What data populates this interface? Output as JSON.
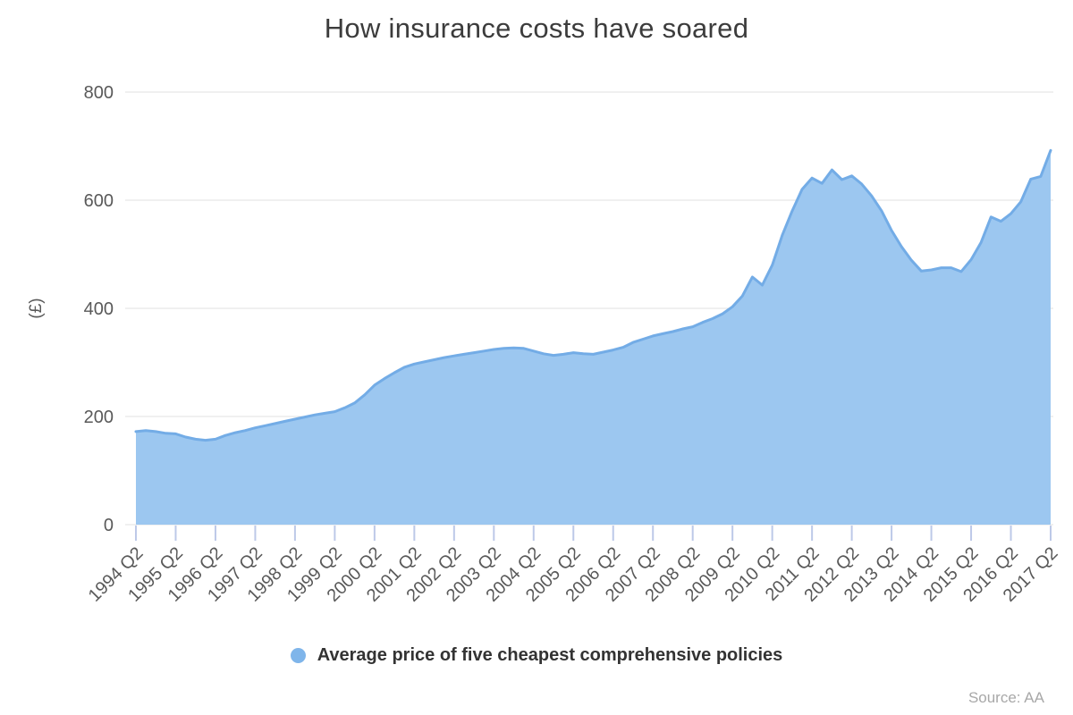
{
  "title": "How insurance costs have soared",
  "y_axis": {
    "label": "(£)",
    "ticks": [
      0,
      200,
      400,
      600,
      800
    ],
    "max": 800
  },
  "x_axis": {
    "tick_labels": [
      "1994 Q2",
      "1995 Q2",
      "1996 Q2",
      "1997 Q2",
      "1998 Q2",
      "1999 Q2",
      "2000 Q2",
      "2001 Q2",
      "2002 Q2",
      "2003 Q2",
      "2004 Q2",
      "2005 Q2",
      "2006 Q2",
      "2007 Q2",
      "2008 Q2",
      "2009 Q2",
      "2010 Q2",
      "2011 Q2",
      "2012 Q2",
      "2013 Q2",
      "2014 Q2",
      "2015 Q2",
      "2016 Q2",
      "2017 Q2"
    ]
  },
  "legend": {
    "label": "Average price of five cheapest comprehensive policies"
  },
  "source": "Source: AA",
  "colors": {
    "area_fill": "#9cc7f0",
    "line": "#73ace6",
    "legend_marker": "#7fb5ea",
    "grid": "#e0e0e0",
    "tick": "#bdc9e8",
    "axis_text": "#595959",
    "title_text": "#3c3c3c",
    "legend_text": "#333333",
    "source_text": "#a8a8a8"
  },
  "chart_data": {
    "type": "area",
    "title": "How insurance costs have soared",
    "xlabel": "",
    "ylabel": "(£)",
    "ylim": [
      0,
      800
    ],
    "grid": true,
    "legend_position": "bottom",
    "x_tick_labels_shown": "Q2 of each year, rotated 45 degrees",
    "series": [
      {
        "name": "Average price of five cheapest comprehensive policies",
        "x": [
          "1994 Q2",
          "1994 Q3",
          "1994 Q4",
          "1995 Q1",
          "1995 Q2",
          "1995 Q3",
          "1995 Q4",
          "1996 Q1",
          "1996 Q2",
          "1996 Q3",
          "1996 Q4",
          "1997 Q1",
          "1997 Q2",
          "1997 Q3",
          "1997 Q4",
          "1998 Q1",
          "1998 Q2",
          "1998 Q3",
          "1998 Q4",
          "1999 Q1",
          "1999 Q2",
          "1999 Q3",
          "1999 Q4",
          "2000 Q1",
          "2000 Q2",
          "2000 Q3",
          "2000 Q4",
          "2001 Q1",
          "2001 Q2",
          "2001 Q3",
          "2001 Q4",
          "2002 Q1",
          "2002 Q2",
          "2002 Q3",
          "2002 Q4",
          "2003 Q1",
          "2003 Q2",
          "2003 Q3",
          "2003 Q4",
          "2004 Q1",
          "2004 Q2",
          "2004 Q3",
          "2004 Q4",
          "2005 Q1",
          "2005 Q2",
          "2005 Q3",
          "2005 Q4",
          "2006 Q1",
          "2006 Q2",
          "2006 Q3",
          "2006 Q4",
          "2007 Q1",
          "2007 Q2",
          "2007 Q3",
          "2007 Q4",
          "2008 Q1",
          "2008 Q2",
          "2008 Q3",
          "2008 Q4",
          "2009 Q1",
          "2009 Q2",
          "2009 Q3",
          "2009 Q4",
          "2010 Q1",
          "2010 Q2",
          "2010 Q3",
          "2010 Q4",
          "2011 Q1",
          "2011 Q2",
          "2011 Q3",
          "2011 Q4",
          "2012 Q1",
          "2012 Q2",
          "2012 Q3",
          "2012 Q4",
          "2013 Q1",
          "2013 Q2",
          "2013 Q3",
          "2013 Q4",
          "2014 Q1",
          "2014 Q2",
          "2014 Q3",
          "2014 Q4",
          "2015 Q1",
          "2015 Q2",
          "2015 Q3",
          "2015 Q4",
          "2016 Q1",
          "2016 Q2",
          "2016 Q3",
          "2016 Q4",
          "2017 Q1",
          "2017 Q2"
        ],
        "values": [
          172,
          174,
          172,
          169,
          168,
          162,
          158,
          156,
          158,
          165,
          170,
          174,
          179,
          183,
          187,
          191,
          195,
          199,
          203,
          206,
          209,
          216,
          225,
          240,
          258,
          270,
          281,
          291,
          297,
          301,
          305,
          309,
          312,
          315,
          318,
          321,
          324,
          326,
          327,
          326,
          321,
          316,
          313,
          315,
          318,
          316,
          315,
          319,
          323,
          328,
          337,
          343,
          349,
          353,
          357,
          362,
          366,
          374,
          381,
          390,
          403,
          423,
          458,
          443,
          480,
          535,
          580,
          620,
          641,
          631,
          656,
          638,
          645,
          630,
          608,
          580,
          544,
          514,
          489,
          469,
          471,
          475,
          475,
          468,
          490,
          522,
          569,
          561,
          575,
          597,
          639,
          644,
          692
        ]
      }
    ]
  }
}
